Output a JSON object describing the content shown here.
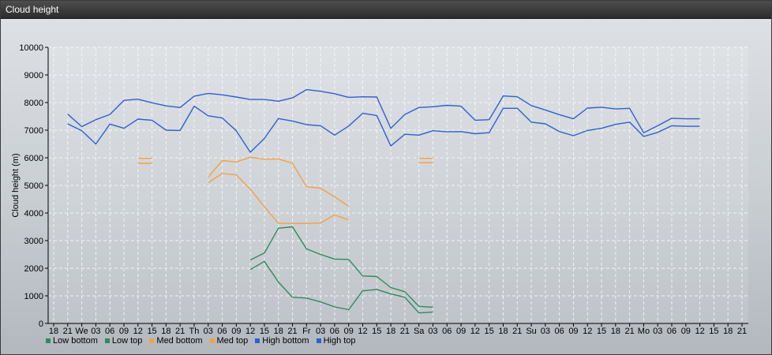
{
  "window": {
    "title": "Cloud height"
  },
  "chart_data": {
    "type": "line",
    "title": "",
    "ylabel": "Cloud height (m)",
    "xlabel": "",
    "ylim": [
      0,
      10000
    ],
    "yticks": [
      0,
      1000,
      2000,
      3000,
      4000,
      5000,
      6000,
      7000,
      8000,
      9000,
      10000
    ],
    "x_tick_labels": [
      "18",
      "21",
      "We",
      "03",
      "06",
      "09",
      "12",
      "15",
      "18",
      "21",
      "Th",
      "03",
      "06",
      "09",
      "12",
      "15",
      "18",
      "21",
      "Fr",
      "03",
      "06",
      "09",
      "12",
      "15",
      "18",
      "21",
      "Sa",
      "03",
      "06",
      "09",
      "12",
      "15",
      "18",
      "21",
      "Su",
      "03",
      "06",
      "09",
      "12",
      "15",
      "18",
      "21",
      "Mo",
      "03",
      "06",
      "09",
      "12",
      "15",
      "18",
      "21"
    ],
    "grid": true,
    "legend_position": "bottom-left",
    "series": [
      {
        "name": "Low bottom",
        "color": "#2e8b57",
        "x": [
          14,
          15,
          16,
          17,
          18,
          19,
          20,
          21,
          22,
          23,
          24,
          25,
          26,
          27
        ],
        "y": [
          1950,
          2250,
          1500,
          950,
          920,
          780,
          600,
          500,
          1180,
          1230,
          1070,
          950,
          380,
          410
        ]
      },
      {
        "name": "Low top",
        "color": "#2e8b57",
        "x": [
          14,
          15,
          16,
          17,
          18,
          19,
          20,
          21,
          22,
          23,
          24,
          25,
          26,
          27
        ],
        "y": [
          2300,
          2550,
          3450,
          3500,
          2700,
          2500,
          2330,
          2320,
          1720,
          1700,
          1300,
          1150,
          620,
          590
        ]
      },
      {
        "name": "Med bottom",
        "color": "#f4a041",
        "x": [
          6,
          7,
          11,
          12,
          13,
          14,
          15,
          16,
          17,
          18,
          19,
          20,
          21,
          26,
          27
        ],
        "y": [
          5800,
          5800,
          5100,
          5430,
          5380,
          4870,
          4230,
          3630,
          3620,
          3620,
          3640,
          3930,
          3750,
          5820,
          5820
        ]
      },
      {
        "name": "Med top",
        "color": "#f4a041",
        "x": [
          6,
          7,
          11,
          12,
          13,
          14,
          15,
          16,
          17,
          18,
          19,
          20,
          21,
          26,
          27
        ],
        "y": [
          5980,
          5980,
          5300,
          5900,
          5850,
          6020,
          5950,
          5960,
          5800,
          4950,
          4900,
          4580,
          4250,
          5980,
          5980
        ]
      },
      {
        "name": "High bottom",
        "color": "#2f5fd0",
        "x": [
          1,
          2,
          3,
          4,
          5,
          6,
          7,
          8,
          9,
          10,
          11,
          12,
          13,
          14,
          15,
          16,
          17,
          18,
          19,
          20,
          21,
          22,
          23,
          24,
          25,
          26,
          27,
          28,
          29,
          30,
          31,
          32,
          33,
          34,
          35,
          36,
          37,
          38,
          39,
          40,
          41,
          42,
          43,
          44,
          45,
          46
        ],
        "y": [
          7230,
          6980,
          6500,
          7220,
          7070,
          7400,
          7360,
          7000,
          6990,
          7870,
          7520,
          7440,
          6980,
          6200,
          6700,
          7420,
          7330,
          7200,
          7160,
          6820,
          7150,
          7610,
          7530,
          6430,
          6850,
          6820,
          6980,
          6940,
          6950,
          6870,
          6910,
          7790,
          7790,
          7290,
          7230,
          6950,
          6800,
          6990,
          7070,
          7210,
          7290,
          6770,
          6920,
          7160,
          7140,
          7140
        ]
      },
      {
        "name": "High top",
        "color": "#2f5fd0",
        "x": [
          1,
          2,
          3,
          4,
          5,
          6,
          7,
          8,
          9,
          10,
          11,
          12,
          13,
          14,
          15,
          16,
          17,
          18,
          19,
          20,
          21,
          22,
          23,
          24,
          25,
          26,
          27,
          28,
          29,
          30,
          31,
          32,
          33,
          34,
          35,
          36,
          37,
          38,
          39,
          40,
          41,
          42,
          43,
          44,
          45,
          46
        ],
        "y": [
          7580,
          7130,
          7380,
          7570,
          8080,
          8120,
          7990,
          7880,
          7820,
          8230,
          8330,
          8280,
          8200,
          8110,
          8110,
          8050,
          8170,
          8470,
          8410,
          8320,
          8190,
          8210,
          8200,
          7070,
          7570,
          7820,
          7850,
          7900,
          7870,
          7360,
          7380,
          8240,
          8210,
          7890,
          7730,
          7560,
          7410,
          7800,
          7830,
          7770,
          7790,
          6910,
          7160,
          7430,
          7410,
          7410
        ]
      }
    ]
  }
}
